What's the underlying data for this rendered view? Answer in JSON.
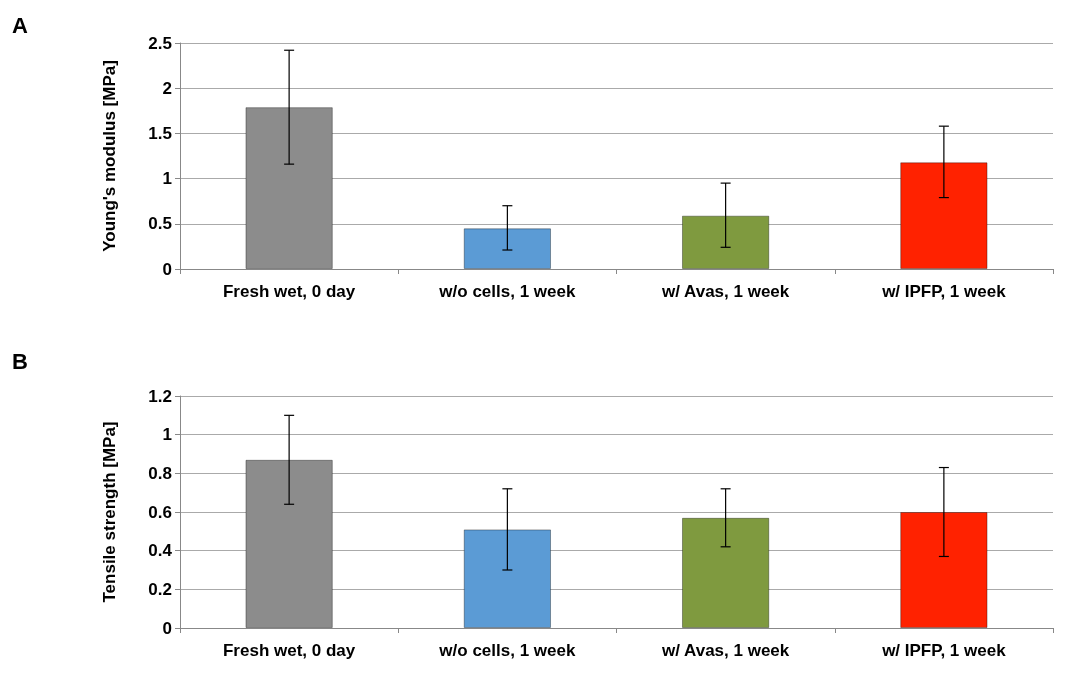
{
  "chart_data": [
    {
      "type": "bar",
      "annotations": [
        "A"
      ],
      "ylabel": "Young's modulus [MPa]",
      "categories": [
        "Fresh wet, 0 day",
        "w/o cells, 1 week",
        "w/ Avas, 1 week",
        "w/ IPFP, 1 week"
      ],
      "values": [
        1.79,
        0.45,
        0.59,
        1.18
      ],
      "colors": [
        "#8c8c8c",
        "#5b9bd5",
        "#7f9a3f",
        "#ff2200"
      ],
      "errors": [
        [
          1.16,
          2.42
        ],
        [
          0.21,
          0.7
        ],
        [
          0.24,
          0.95
        ],
        [
          0.79,
          1.58
        ]
      ],
      "ylim": [
        0,
        2.5
      ],
      "yticks": [
        0,
        0.5,
        1,
        1.5,
        2,
        2.5
      ],
      "grid": "y"
    },
    {
      "type": "bar",
      "annotations": [
        "B"
      ],
      "ylabel": "Tensile strength [MPa]",
      "categories": [
        "Fresh wet, 0 day",
        "w/o cells, 1 week",
        "w/ Avas, 1 week",
        "w/ IPFP, 1 week"
      ],
      "values": [
        0.87,
        0.51,
        0.57,
        0.6
      ],
      "colors": [
        "#8c8c8c",
        "#5b9bd5",
        "#7f9a3f",
        "#ff2200"
      ],
      "errors": [
        [
          0.64,
          1.1
        ],
        [
          0.3,
          0.72
        ],
        [
          0.42,
          0.72
        ],
        [
          0.37,
          0.83
        ]
      ],
      "ylim": [
        0,
        1.2
      ],
      "yticks": [
        0,
        0.2,
        0.4,
        0.6,
        0.8,
        1,
        1.2
      ],
      "grid": "y"
    }
  ]
}
